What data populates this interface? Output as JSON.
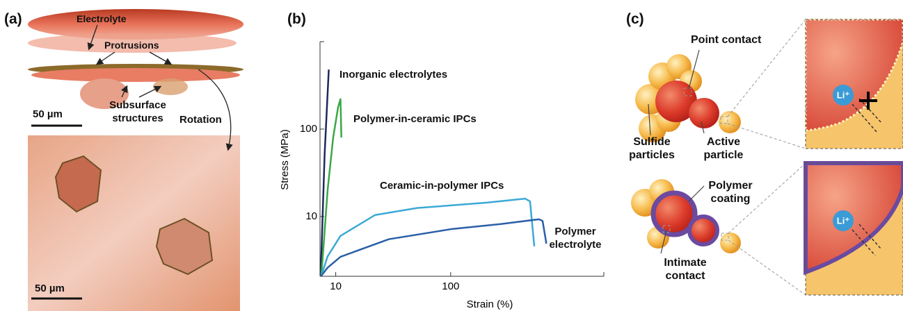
{
  "panels": {
    "a": {
      "label": "(a)",
      "annotations": [
        "Electrolyte",
        "Protrusions",
        "Subsurface structures",
        "Rotation"
      ],
      "scale_bars": [
        "50 µm",
        "50 µm"
      ]
    },
    "c": {
      "label": "(c)",
      "annotations": [
        "Point contact",
        "Sulfide particles",
        "Active particle",
        "Polymer coating",
        "Intimate contact"
      ],
      "ion_labels": [
        "Li⁺",
        "Li⁺"
      ]
    }
  },
  "chart_data": {
    "type": "line",
    "panel_label": "(b)",
    "x_label": "Strain (%)",
    "y_label": "Stress (MPa)",
    "xscale": "log",
    "yscale": "log",
    "xlim": [
      7.3,
      2150
    ],
    "ylim": [
      2.07,
      1000
    ],
    "xticks": [
      10,
      100
    ],
    "yticks": [
      10,
      100
    ],
    "series": [
      {
        "name": "Inorganic electrolytes",
        "color": "#1c2a5c",
        "x": [
          7.4,
          8.0,
          8.7
        ],
        "values": [
          2.1,
          50,
          480
        ]
      },
      {
        "name": "Polymer-in-ceramic IPCs",
        "color": "#3aa845",
        "x": [
          7.5,
          8.5,
          9.5,
          10.5,
          11.0,
          11.2
        ],
        "values": [
          2.1,
          20,
          80,
          180,
          220,
          80
        ]
      },
      {
        "name": "Ceramic-in-polymer IPCs",
        "color": "#3ba9d6",
        "x": [
          7.5,
          8.5,
          11,
          22,
          51,
          206,
          445,
          490,
          534
        ],
        "values": [
          2.1,
          3.5,
          6,
          10.4,
          12.5,
          14.4,
          16,
          14.9,
          4.55
        ]
      },
      {
        "name": "Polymer electrolyte",
        "color": "#2a5fa8",
        "x": [
          7.5,
          8.5,
          11,
          29,
          103,
          272,
          587,
          630,
          680
        ],
        "values": [
          2.1,
          2.6,
          3.46,
          5.5,
          7.2,
          8.2,
          9.3,
          8.9,
          4.9
        ]
      }
    ]
  }
}
